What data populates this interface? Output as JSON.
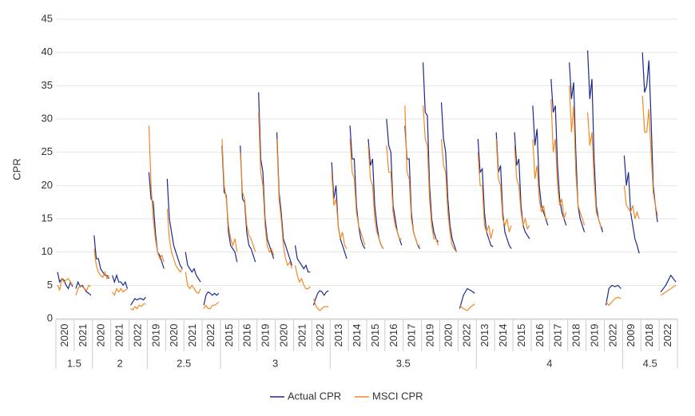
{
  "chart_data": {
    "type": "line",
    "y_label": "CPR",
    "ylim": [
      0,
      45
    ],
    "yticks": [
      0,
      5,
      10,
      15,
      20,
      25,
      30,
      35,
      40,
      45
    ],
    "grid": true,
    "legend": "bottom",
    "groups": [
      {
        "label": "1.5",
        "vintages": [
          "2020",
          "2021"
        ]
      },
      {
        "label": "2",
        "vintages": [
          "2020",
          "2021",
          "2022"
        ]
      },
      {
        "label": "2.5",
        "vintages": [
          "2019",
          "2020",
          "2021",
          "2022"
        ]
      },
      {
        "label": "3",
        "vintages": [
          "2015",
          "2016",
          "2019",
          "2020",
          "2021",
          "2022"
        ]
      },
      {
        "label": "3.5",
        "vintages": [
          "2013",
          "2014",
          "2015",
          "2016",
          "2017",
          "2019",
          "2020",
          "2022"
        ]
      },
      {
        "label": "4",
        "vintages": [
          "2013",
          "2014",
          "2015",
          "2016",
          "2017",
          "2018",
          "2019",
          "2022"
        ]
      },
      {
        "label": "4.5",
        "vintages": [
          "2009",
          "2018",
          "2022"
        ]
      }
    ],
    "series": [
      {
        "name": "Actual CPR",
        "color": "#1b2a8c",
        "values": [
          [
            7,
            5.5,
            6,
            5.8,
            5,
            4.5,
            5.5,
            4.8
          ],
          [
            4.5,
            5.5,
            4.8,
            5,
            4.5,
            4,
            3.8,
            3.5
          ],
          [
            12.5,
            9,
            9,
            7.5,
            7,
            6.5,
            6.5,
            6
          ],
          [
            6.5,
            5.5,
            6.5,
            5.5,
            5.5,
            5,
            5.5,
            4.5
          ],
          [
            2,
            2.5,
            3,
            2.8,
            3,
            3,
            2.8,
            3.2
          ],
          [
            22,
            18,
            17.5,
            13,
            10,
            9.5,
            8.5,
            7.5
          ],
          [
            21,
            15,
            13,
            11,
            10,
            9,
            8,
            7.5
          ],
          [
            10,
            8,
            7.5,
            7,
            7.5,
            6.5,
            6,
            5.5
          ],
          [
            2,
            3.5,
            4,
            3.8,
            3.5,
            3.8,
            3.5,
            3.8
          ],
          [
            26,
            19,
            18.5,
            13,
            11,
            10.5,
            10,
            8.5
          ],
          [
            26,
            18,
            17.5,
            13,
            11,
            10.5,
            9.5,
            8.5
          ],
          [
            34,
            24,
            22,
            15,
            12,
            11,
            10,
            9
          ],
          [
            28,
            19,
            16,
            12,
            11,
            10,
            9,
            8
          ],
          [
            11,
            9,
            8.5,
            8,
            7.5,
            8,
            7,
            7
          ],
          [
            2,
            3,
            3.8,
            4.2,
            4,
            3.5,
            4,
            4.2
          ],
          [
            23.5,
            18,
            20,
            14,
            12,
            11,
            10,
            9
          ],
          [
            29,
            24,
            24,
            17,
            14,
            12,
            11,
            10.5
          ],
          [
            27,
            23,
            24,
            17,
            14,
            12,
            11,
            10.5
          ],
          [
            30,
            26,
            25,
            17,
            15,
            13,
            12,
            11
          ],
          [
            29,
            24,
            24,
            16,
            13,
            12,
            11,
            10.5
          ],
          [
            38.5,
            31,
            30.5,
            20,
            15,
            13,
            12,
            11.5
          ],
          [
            32.5,
            27,
            25,
            18,
            14,
            12,
            11,
            10
          ],
          [
            1.5,
            3.5,
            4.5,
            4.2,
            3.8
          ],
          [
            27,
            22,
            22.5,
            16,
            13,
            12,
            11,
            10.8
          ],
          [
            28,
            22,
            23,
            16,
            13,
            12,
            11,
            10.5
          ],
          [
            28,
            23,
            24,
            17,
            14,
            13,
            12.5,
            12
          ],
          [
            32,
            26,
            28.5,
            20,
            17,
            16,
            15,
            14
          ],
          [
            36,
            31,
            32,
            23,
            18,
            16,
            15,
            14
          ],
          [
            38.5,
            33,
            35.5,
            25,
            17,
            15,
            14,
            13
          ],
          [
            40.3,
            33,
            36,
            24,
            17,
            15,
            14,
            13
          ],
          [
            2,
            4.5,
            5,
            4.8,
            5,
            4.5
          ],
          [
            24.5,
            20,
            22,
            16,
            14,
            12,
            11,
            9.8
          ],
          [
            40,
            34,
            35,
            38.8,
            30,
            20,
            17,
            14.5
          ],
          [
            4,
            5,
            6.5,
            5.5
          ]
        ]
      },
      {
        "name": "MSCI CPR",
        "color": "#f08a24",
        "values": [
          [
            5,
            4.3,
            6,
            5.5,
            5.8,
            6,
            5.5,
            5
          ],
          [
            3.5,
            4.5,
            5,
            4.8,
            4.5,
            4.2,
            5,
            4.8
          ],
          [
            10.5,
            8,
            7,
            6.5,
            6.2,
            7,
            6,
            6.5
          ],
          [
            4,
            3.5,
            4.5,
            4,
            4.5,
            4,
            4.3,
            4.5
          ],
          [
            1.5,
            1.3,
            1.8,
            1.5,
            2,
            1.8,
            2.2,
            2.2
          ],
          [
            29,
            20,
            15,
            12,
            10,
            9,
            9.5,
            8.5
          ],
          [
            16.5,
            12,
            10,
            9,
            8,
            7.5,
            7,
            7.5
          ],
          [
            7,
            5,
            4.5,
            5,
            4.5,
            4,
            3.8,
            4.5
          ],
          [
            1.5,
            2,
            1.5,
            1.5,
            2,
            2,
            2.2,
            2.5
          ],
          [
            27,
            20,
            18,
            14,
            12,
            11,
            12,
            10
          ],
          [
            25,
            19,
            18,
            14,
            12.5,
            12,
            11,
            10
          ],
          [
            31,
            22,
            20,
            14,
            11,
            10,
            10.5,
            9.5
          ],
          [
            27,
            18,
            15,
            11,
            9,
            8,
            8.5,
            7.5
          ],
          [
            8,
            6.5,
            5.5,
            6,
            5,
            4.5,
            4.5,
            4.8
          ],
          [
            3,
            2,
            1.5,
            1.2,
            1.5,
            1.8,
            1.8,
            1.8
          ],
          [
            22,
            17,
            18,
            14,
            12,
            13,
            11,
            10.5
          ],
          [
            27,
            22,
            21,
            16,
            14,
            13,
            12,
            11
          ],
          [
            26,
            21,
            20,
            15,
            13,
            12,
            11,
            10.5
          ],
          [
            26,
            22,
            22,
            16,
            14,
            13,
            12,
            12
          ],
          [
            32,
            22,
            21,
            15,
            13,
            12,
            11,
            11
          ],
          [
            32,
            27,
            26,
            18,
            14,
            12,
            12,
            11
          ],
          [
            27,
            23,
            22,
            16,
            13,
            11,
            10.5,
            10
          ],
          [
            2,
            1.5,
            1.2,
            1.8,
            2.2
          ],
          [
            25,
            20,
            20,
            14,
            13,
            14,
            12,
            13.5
          ],
          [
            27,
            21,
            20,
            15,
            14,
            15,
            13,
            14
          ],
          [
            26,
            21,
            20,
            16,
            14,
            15,
            13.5,
            14
          ],
          [
            27,
            21,
            23,
            18,
            16,
            17,
            15,
            15
          ],
          [
            33,
            25,
            27,
            20,
            17,
            18,
            15,
            16
          ],
          [
            35,
            28,
            32,
            22,
            17,
            16,
            15,
            14
          ],
          [
            31,
            26,
            28,
            21,
            16,
            15,
            14,
            13.5
          ],
          [
            2.5,
            2,
            2.5,
            3,
            3.2,
            3
          ],
          [
            20,
            17,
            16.5,
            16,
            17,
            15,
            16,
            15
          ],
          [
            33.5,
            28,
            28,
            31.5,
            25,
            19,
            17,
            15.5
          ],
          [
            3.5,
            4,
            4.5,
            5
          ]
        ]
      }
    ]
  }
}
